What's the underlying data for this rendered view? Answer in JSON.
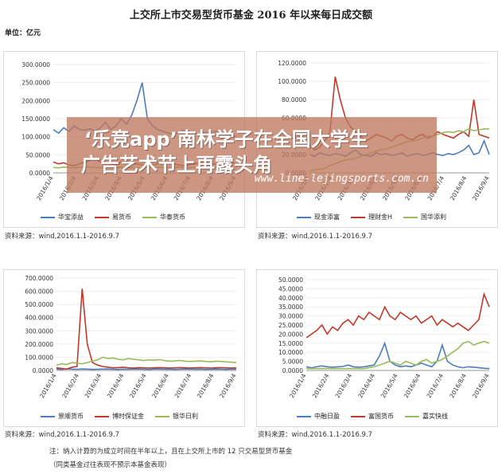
{
  "title": "上交所上市交易型货币基金 2016 年以来每日成交额",
  "unit": "单位：亿元",
  "source_text": "资料来源：wind,2016.1.1-2016.9.7",
  "footnote": [
    "注：纳入计算的为成立时间在半年以上，且在上交所上市的 12 只交易型货币基金",
    "（同类基金过往表现不预示本基金表现）"
  ],
  "banner": {
    "line1": "‘乐竞app’南林学子在全国大学生",
    "line2": "广告艺术节上再露头角",
    "url": "www.line-lejingsports.com.cn"
  },
  "colors": {
    "blue": "#4a7ebb",
    "red": "#c0392b",
    "green": "#9bbb59"
  },
  "chart_data": [
    {
      "type": "line",
      "x_ticks": [
        "2016/1/4",
        "2016/2/4",
        "2016/3/4",
        "2016/4/4",
        "2016/5/4",
        "2016/6/4",
        "2016/7/4",
        "2016/8/4",
        "2016/9/4"
      ],
      "y_ticks": [
        "0.0000",
        "50.0000",
        "100.0000",
        "150.0000",
        "200.0000",
        "250.0000",
        "300.0000"
      ],
      "ylim": [
        0,
        300
      ],
      "series": [
        {
          "name": "华宝添益",
          "color": "blue",
          "values": [
            120,
            110,
            125,
            115,
            130,
            120,
            118,
            122,
            115,
            125,
            140,
            120,
            130,
            150,
            135,
            160,
            200,
            250,
            150,
            130,
            120,
            115,
            110,
            108,
            112,
            118,
            115,
            110,
            105,
            112,
            108,
            115,
            110,
            112,
            105,
            100
          ]
        },
        {
          "name": "易货币",
          "color": "red",
          "values": [
            30,
            25,
            28,
            22,
            20,
            25,
            30,
            35,
            40,
            30,
            28,
            25,
            22,
            30,
            35,
            28,
            25,
            22,
            20,
            22,
            25,
            28,
            30,
            25,
            22,
            20,
            22,
            25,
            28,
            30,
            26,
            24,
            22,
            25,
            28,
            25
          ]
        },
        {
          "name": "华泰货币",
          "color": "green",
          "values": [
            15,
            14,
            16,
            15,
            14,
            15,
            17,
            16,
            15,
            14,
            16,
            15,
            14,
            16,
            15,
            14,
            13,
            15,
            16,
            14,
            15,
            16,
            14,
            15,
            16,
            15,
            14,
            15,
            16,
            15,
            14,
            15,
            16,
            15,
            14,
            15
          ]
        }
      ]
    },
    {
      "type": "line",
      "x_ticks": [
        "2016/1/4",
        "2016/2/4",
        "2016/3/4",
        "2016/4/4",
        "2016/5/4",
        "2016/6/4",
        "2016/7/4",
        "2016/8/4",
        "2016/9/4"
      ],
      "y_ticks": [
        "0.0000",
        "20.0000",
        "40.0000",
        "60.0000",
        "80.0000",
        "100.0000",
        "120.0000"
      ],
      "ylim": [
        0,
        120
      ],
      "series": [
        {
          "name": "现金添富",
          "color": "blue",
          "values": [
            20,
            18,
            22,
            20,
            19,
            21,
            20,
            18,
            22,
            25,
            20,
            19,
            18,
            22,
            20,
            21,
            19,
            20,
            22,
            18,
            20,
            21,
            19,
            20,
            22,
            20,
            19,
            21,
            20,
            22,
            25,
            30,
            20,
            22,
            35,
            20
          ]
        },
        {
          "name": "理财金H",
          "color": "red",
          "values": [
            30,
            25,
            28,
            35,
            45,
            105,
            80,
            60,
            50,
            45,
            40,
            35,
            38,
            42,
            40,
            38,
            35,
            40,
            42,
            38,
            36,
            40,
            42,
            38,
            40,
            45,
            42,
            40,
            38,
            42,
            45,
            40,
            80,
            42,
            40,
            38
          ]
        },
        {
          "name": "国华添利",
          "color": "green",
          "values": [
            2,
            3,
            4,
            5,
            8,
            10,
            12,
            14,
            15,
            16,
            18,
            20,
            22,
            24,
            25,
            26,
            28,
            30,
            32,
            34,
            35,
            36,
            38,
            40,
            40,
            42,
            44,
            45,
            44,
            46,
            45,
            48,
            46,
            47,
            48,
            48
          ]
        }
      ]
    },
    {
      "type": "line",
      "x_ticks": [
        "2016/1/4",
        "2016/2/4",
        "2016/3/4",
        "2016/4/4",
        "2016/5/4",
        "2016/6/4",
        "2016/7/4",
        "2016/8/4",
        "2016/9/4"
      ],
      "y_ticks": [
        "0.0000",
        "100.0000",
        "200.0000",
        "300.0000",
        "400.0000",
        "500.0000",
        "600.0000",
        "700.0000"
      ],
      "ylim": [
        0,
        700
      ],
      "series": [
        {
          "name": "景顺货币",
          "color": "blue",
          "values": [
            10,
            8,
            12,
            10,
            9,
            11,
            10,
            8,
            9,
            10,
            11,
            9,
            8,
            10,
            9,
            11,
            10,
            9,
            8,
            10,
            11,
            9,
            10,
            8,
            9,
            10,
            11,
            9,
            10,
            8,
            9,
            10,
            9,
            8,
            10,
            9
          ]
        },
        {
          "name": "博时保证金",
          "color": "red",
          "values": [
            20,
            15,
            10,
            25,
            30,
            620,
            200,
            60,
            40,
            30,
            25,
            20,
            22,
            25,
            20,
            18,
            22,
            20,
            18,
            20,
            22,
            20,
            18,
            20,
            22,
            20,
            18,
            20,
            22,
            20,
            18,
            20,
            22,
            20,
            18,
            20
          ]
        },
        {
          "name": "银华日利",
          "color": "green",
          "values": [
            40,
            50,
            45,
            60,
            55,
            50,
            60,
            70,
            80,
            100,
            90,
            95,
            85,
            80,
            90,
            85,
            80,
            75,
            80,
            78,
            82,
            75,
            70,
            72,
            75,
            70,
            68,
            70,
            72,
            68,
            65,
            70,
            68,
            65,
            62,
            60
          ]
        }
      ]
    },
    {
      "type": "line",
      "x_ticks": [
        "2016/1/4",
        "2016/2/4",
        "2016/3/4",
        "2016/4/4",
        "2016/5/4",
        "2016/6/4",
        "2016/7/4",
        "2016/8/4",
        "2016/9/4"
      ],
      "y_ticks": [
        "0.0000",
        "5.0000",
        "10.0000",
        "15.0000",
        "20.0000",
        "25.0000",
        "30.0000",
        "35.0000",
        "40.0000",
        "45.0000",
        "50.0000"
      ],
      "ylim": [
        0,
        50
      ],
      "series": [
        {
          "name": "中融日盈",
          "color": "blue",
          "values": [
            2,
            1.5,
            2,
            2.5,
            2,
            1.8,
            2,
            2.2,
            3,
            2,
            1.8,
            2,
            2.5,
            3,
            8,
            15,
            5,
            3,
            2,
            2.5,
            2,
            3,
            4,
            3,
            2,
            5,
            14,
            5,
            3,
            2,
            1.5,
            2,
            1.8,
            1.5,
            1.2,
            1
          ]
        },
        {
          "name": "富国货币",
          "color": "red",
          "values": [
            18,
            20,
            22,
            25,
            20,
            24,
            22,
            26,
            28,
            25,
            30,
            28,
            32,
            30,
            28,
            35,
            30,
            28,
            32,
            30,
            28,
            30,
            26,
            28,
            30,
            25,
            28,
            26,
            24,
            26,
            24,
            22,
            25,
            28,
            42,
            35
          ]
        },
        {
          "name": "嘉实快线",
          "color": "green",
          "values": [
            1,
            1,
            1,
            1,
            1,
            1,
            1,
            1,
            1,
            1,
            1,
            1,
            1.5,
            2,
            3,
            4,
            5,
            4,
            3,
            5,
            4,
            3,
            5,
            6,
            4,
            5,
            6,
            8,
            10,
            12,
            15,
            16,
            14,
            15,
            16,
            15
          ]
        }
      ]
    }
  ]
}
